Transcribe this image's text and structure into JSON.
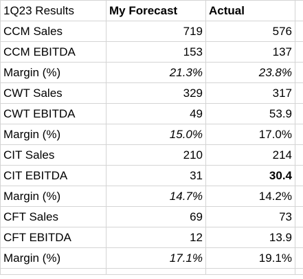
{
  "header": {
    "col1": "1Q23 Results",
    "col2": "My Forecast",
    "col3": "Actual"
  },
  "rows": [
    {
      "label": "CCM Sales",
      "forecast": "719",
      "actual": "576",
      "forecast_italic": false,
      "actual_italic": false,
      "actual_bold": false
    },
    {
      "label": "CCM EBITDA",
      "forecast": "153",
      "actual": "137",
      "forecast_italic": false,
      "actual_italic": false,
      "actual_bold": false
    },
    {
      "label": "Margin (%)",
      "forecast": "21.3%",
      "actual": "23.8%",
      "forecast_italic": true,
      "actual_italic": true,
      "actual_bold": false
    },
    {
      "label": "CWT Sales",
      "forecast": "329",
      "actual": "317",
      "forecast_italic": false,
      "actual_italic": false,
      "actual_bold": false
    },
    {
      "label": "CWT EBITDA",
      "forecast": "49",
      "actual": "53.9",
      "forecast_italic": false,
      "actual_italic": false,
      "actual_bold": false
    },
    {
      "label": "Margin (%)",
      "forecast": "15.0%",
      "actual": "17.0%",
      "forecast_italic": true,
      "actual_italic": false,
      "actual_bold": false
    },
    {
      "label": "CIT Sales",
      "forecast": "210",
      "actual": "214",
      "forecast_italic": false,
      "actual_italic": false,
      "actual_bold": false
    },
    {
      "label": "CIT EBITDA",
      "forecast": "31",
      "actual": "30.4",
      "forecast_italic": false,
      "actual_italic": false,
      "actual_bold": true
    },
    {
      "label": "Margin (%)",
      "forecast": "14.7%",
      "actual": "14.2%",
      "forecast_italic": true,
      "actual_italic": false,
      "actual_bold": false
    },
    {
      "label": "CFT Sales",
      "forecast": "69",
      "actual": "73",
      "forecast_italic": false,
      "actual_italic": false,
      "actual_bold": false
    },
    {
      "label": "CFT EBITDA",
      "forecast": "12",
      "actual": "13.9",
      "forecast_italic": false,
      "actual_italic": false,
      "actual_bold": false
    },
    {
      "label": "Margin (%)",
      "forecast": "17.1%",
      "actual": "19.1%",
      "forecast_italic": true,
      "actual_italic": false,
      "actual_bold": false
    }
  ],
  "colors": {
    "gridline": "#d4d4d4",
    "text": "#000000",
    "background": "#ffffff"
  }
}
